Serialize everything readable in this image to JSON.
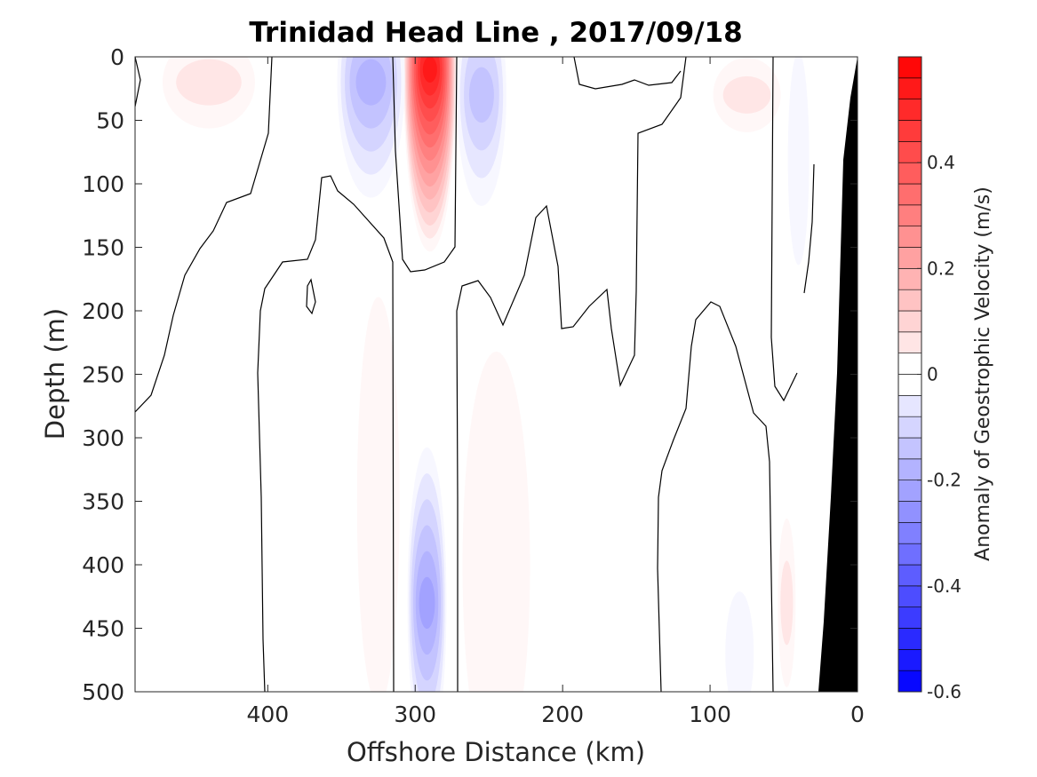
{
  "chart_data": {
    "type": "heatmap",
    "title": "Trinidad Head Line , 2017/09/18",
    "xlabel": "Offshore Distance (km)",
    "ylabel": "Depth (m)",
    "xlim": [
      490,
      0
    ],
    "ylim": [
      0,
      500
    ],
    "x_reversed": true,
    "y_reversed": true,
    "xticks": [
      400,
      300,
      200,
      100,
      0
    ],
    "yticks": [
      0,
      50,
      100,
      150,
      200,
      250,
      300,
      350,
      400,
      450,
      500
    ],
    "colorbar": {
      "label": "Anomaly of Geostrophic Velocity (m/s)",
      "range": [
        -0.6,
        0.6
      ],
      "step": 0.04,
      "ticks": [
        -0.6,
        -0.4,
        -0.2,
        0,
        0.2,
        0.4
      ],
      "tick_labels": [
        "-0.6",
        "-0.4",
        "-0.2",
        "0",
        "0.2",
        "0.4"
      ],
      "positive_color": "#ff0000",
      "negative_color": "#0000ff",
      "zero_color": "#ffffff"
    },
    "bottom_topography_color": "#000000",
    "velocity_features": [
      {
        "x": 290,
        "depth": 10,
        "value": 0.58
      },
      {
        "x": 292,
        "depth": 430,
        "value": -0.22
      },
      {
        "x": 330,
        "depth": 20,
        "value": -0.2
      },
      {
        "x": 255,
        "depth": 30,
        "value": -0.15
      },
      {
        "x": 440,
        "depth": 20,
        "value": 0.06
      },
      {
        "x": 325,
        "depth": 350,
        "value": 0.05
      },
      {
        "x": 245,
        "depth": 400,
        "value": 0.05
      },
      {
        "x": 75,
        "depth": 30,
        "value": 0.06
      },
      {
        "x": 80,
        "depth": 470,
        "value": -0.05
      },
      {
        "x": 40,
        "depth": 80,
        "value": -0.05
      },
      {
        "x": 48,
        "depth": 430,
        "value": 0.06
      }
    ]
  }
}
